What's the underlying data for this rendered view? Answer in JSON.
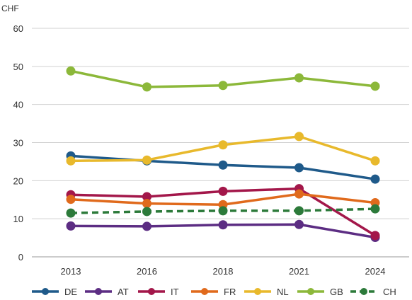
{
  "chart_data": {
    "type": "line",
    "ylabel": "CHF",
    "ylim": [
      0,
      60
    ],
    "yticks": [
      0,
      10,
      20,
      30,
      40,
      50,
      60
    ],
    "categories": [
      "2013",
      "2016",
      "2018",
      "2021",
      "2024"
    ],
    "grid": true,
    "legend_position": "bottom",
    "series": [
      {
        "name": "DE",
        "color": "#1f5a8a",
        "dash": false,
        "values": [
          26.5,
          25.2,
          24.1,
          23.4,
          20.4
        ]
      },
      {
        "name": "AT",
        "color": "#5c2d83",
        "dash": false,
        "values": [
          8.1,
          8.0,
          8.4,
          8.5,
          5.1
        ]
      },
      {
        "name": "IT",
        "color": "#a3174a",
        "dash": false,
        "values": [
          16.3,
          15.8,
          17.2,
          17.9,
          5.6
        ]
      },
      {
        "name": "FR",
        "color": "#e06a1c",
        "dash": false,
        "values": [
          15.1,
          14.0,
          13.7,
          16.5,
          14.2
        ]
      },
      {
        "name": "NL",
        "color": "#e8b92c",
        "dash": false,
        "values": [
          25.2,
          25.4,
          29.4,
          31.6,
          25.2
        ]
      },
      {
        "name": "GB",
        "color": "#8cb83a",
        "dash": false,
        "values": [
          48.8,
          44.6,
          45.0,
          47.0,
          44.8
        ]
      },
      {
        "name": "CH",
        "color": "#2c7a3a",
        "dash": true,
        "values": [
          11.5,
          11.9,
          12.1,
          12.1,
          12.6
        ]
      }
    ]
  }
}
